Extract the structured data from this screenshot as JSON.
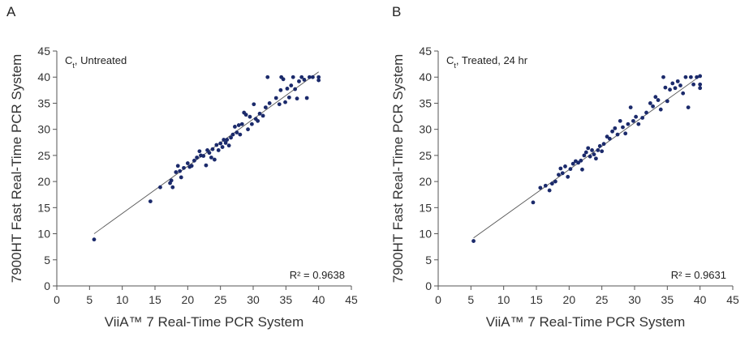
{
  "chart_data": [
    {
      "type": "scatter",
      "panel": "A",
      "title": "",
      "inset_label": "C",
      "inset_label_sub": "t",
      "inset_label_rest": ", Untreated",
      "r2_label": "R² = 0.9638",
      "xlabel": "ViiA™ 7 Real-Time PCR System",
      "ylabel": "7900HT Fast Real-Time PCR System",
      "xlim": [
        0,
        45
      ],
      "ylim": [
        0,
        45
      ],
      "ticks": [
        "0",
        "5",
        "10",
        "15",
        "20",
        "25",
        "30",
        "35",
        "40",
        "45"
      ],
      "trendline": [
        [
          5.7,
          10.0
        ],
        [
          40.0,
          41.0
        ]
      ],
      "color": "#1b2a6b",
      "points": [
        [
          5.7,
          8.9
        ],
        [
          14.3,
          16.2
        ],
        [
          15.8,
          18.9
        ],
        [
          17.3,
          19.7
        ],
        [
          17.7,
          18.9
        ],
        [
          17.5,
          20.2
        ],
        [
          18.2,
          21.8
        ],
        [
          18.5,
          23.0
        ],
        [
          18.8,
          22.0
        ],
        [
          19.0,
          20.8
        ],
        [
          19.4,
          22.6
        ],
        [
          20.0,
          23.5
        ],
        [
          20.3,
          22.8
        ],
        [
          20.6,
          23.0
        ],
        [
          21.0,
          24.0
        ],
        [
          21.4,
          24.6
        ],
        [
          21.8,
          25.8
        ],
        [
          22.0,
          25.0
        ],
        [
          22.4,
          24.9
        ],
        [
          22.8,
          23.1
        ],
        [
          23.0,
          26.0
        ],
        [
          23.3,
          25.5
        ],
        [
          23.6,
          24.6
        ],
        [
          23.8,
          26.2
        ],
        [
          24.1,
          24.2
        ],
        [
          24.4,
          27.0
        ],
        [
          24.7,
          26.0
        ],
        [
          25.0,
          27.3
        ],
        [
          25.3,
          26.6
        ],
        [
          25.5,
          28.0
        ],
        [
          25.8,
          27.4
        ],
        [
          26.0,
          28.0
        ],
        [
          26.3,
          26.9
        ],
        [
          26.6,
          28.4
        ],
        [
          26.9,
          29.0
        ],
        [
          27.2,
          30.5
        ],
        [
          27.5,
          29.4
        ],
        [
          27.8,
          30.8
        ],
        [
          28.0,
          29.0
        ],
        [
          28.3,
          31.0
        ],
        [
          28.6,
          33.2
        ],
        [
          28.9,
          32.8
        ],
        [
          29.2,
          30.0
        ],
        [
          29.5,
          32.4
        ],
        [
          29.8,
          31.0
        ],
        [
          30.1,
          34.8
        ],
        [
          30.4,
          32.0
        ],
        [
          30.7,
          31.6
        ],
        [
          31.0,
          33.0
        ],
        [
          31.5,
          32.6
        ],
        [
          31.9,
          34.2
        ],
        [
          32.2,
          40.0
        ],
        [
          32.5,
          35.0
        ],
        [
          33.5,
          36.0
        ],
        [
          34.0,
          34.8
        ],
        [
          34.2,
          37.5
        ],
        [
          34.3,
          40.0
        ],
        [
          34.6,
          39.6
        ],
        [
          34.9,
          35.2
        ],
        [
          35.2,
          37.8
        ],
        [
          35.5,
          36.1
        ],
        [
          35.8,
          38.4
        ],
        [
          36.1,
          40.0
        ],
        [
          36.4,
          37.7
        ],
        [
          36.7,
          35.9
        ],
        [
          37.0,
          39.2
        ],
        [
          37.4,
          40.0
        ],
        [
          37.8,
          39.5
        ],
        [
          38.2,
          36.0
        ],
        [
          38.6,
          40.0
        ],
        [
          39.1,
          40.0
        ],
        [
          40.0,
          39.4
        ],
        [
          40.0,
          40.0
        ]
      ]
    },
    {
      "type": "scatter",
      "panel": "B",
      "title": "",
      "inset_label": "C",
      "inset_label_sub": "t",
      "inset_label_rest": ", Treated, 24 hr",
      "r2_label": "R² = 0.9631",
      "xlabel": "ViiA™ 7 Real-Time PCR System",
      "ylabel": "7900HT Fast Real-Time PCR System",
      "xlim": [
        0,
        45
      ],
      "ylim": [
        0,
        45
      ],
      "ticks": [
        "0",
        "5",
        "10",
        "15",
        "20",
        "25",
        "30",
        "35",
        "40",
        "45"
      ],
      "trendline": [
        [
          5.4,
          9.2
        ],
        [
          40.0,
          40.2
        ]
      ],
      "color": "#1b2a6b",
      "points": [
        [
          5.4,
          8.6
        ],
        [
          14.5,
          16.0
        ],
        [
          15.6,
          18.8
        ],
        [
          16.4,
          19.2
        ],
        [
          17.0,
          18.3
        ],
        [
          17.4,
          19.6
        ],
        [
          17.9,
          20.0
        ],
        [
          18.4,
          21.3
        ],
        [
          18.7,
          22.5
        ],
        [
          19.0,
          21.6
        ],
        [
          19.4,
          22.9
        ],
        [
          19.8,
          20.9
        ],
        [
          20.2,
          22.4
        ],
        [
          20.6,
          23.4
        ],
        [
          21.0,
          23.9
        ],
        [
          21.4,
          23.6
        ],
        [
          21.8,
          24.0
        ],
        [
          22.0,
          22.3
        ],
        [
          22.3,
          25.0
        ],
        [
          22.6,
          25.6
        ],
        [
          22.9,
          26.4
        ],
        [
          23.2,
          24.8
        ],
        [
          23.5,
          26.0
        ],
        [
          23.8,
          25.2
        ],
        [
          24.1,
          24.4
        ],
        [
          24.4,
          26.0
        ],
        [
          24.7,
          26.8
        ],
        [
          25.0,
          25.8
        ],
        [
          25.3,
          27.2
        ],
        [
          25.8,
          28.6
        ],
        [
          26.2,
          28.2
        ],
        [
          26.6,
          29.6
        ],
        [
          27.0,
          30.2
        ],
        [
          27.4,
          29.0
        ],
        [
          27.8,
          31.6
        ],
        [
          28.2,
          30.4
        ],
        [
          28.6,
          29.2
        ],
        [
          29.0,
          31.0
        ],
        [
          29.4,
          34.2
        ],
        [
          29.8,
          31.6
        ],
        [
          30.2,
          32.4
        ],
        [
          30.6,
          31.0
        ],
        [
          31.2,
          32.2
        ],
        [
          31.8,
          33.2
        ],
        [
          32.4,
          35.0
        ],
        [
          32.8,
          34.4
        ],
        [
          33.2,
          36.2
        ],
        [
          33.6,
          35.6
        ],
        [
          34.0,
          33.8
        ],
        [
          34.4,
          40.0
        ],
        [
          34.7,
          38.0
        ],
        [
          35.0,
          35.4
        ],
        [
          35.4,
          37.6
        ],
        [
          35.8,
          38.8
        ],
        [
          36.2,
          37.9
        ],
        [
          36.6,
          39.2
        ],
        [
          37.0,
          38.4
        ],
        [
          37.4,
          36.9
        ],
        [
          37.8,
          40.0
        ],
        [
          38.2,
          34.2
        ],
        [
          38.6,
          40.0
        ],
        [
          39.0,
          38.6
        ],
        [
          39.5,
          40.0
        ],
        [
          40.0,
          40.2
        ],
        [
          40.0,
          37.9
        ],
        [
          40.0,
          38.6
        ]
      ]
    }
  ]
}
